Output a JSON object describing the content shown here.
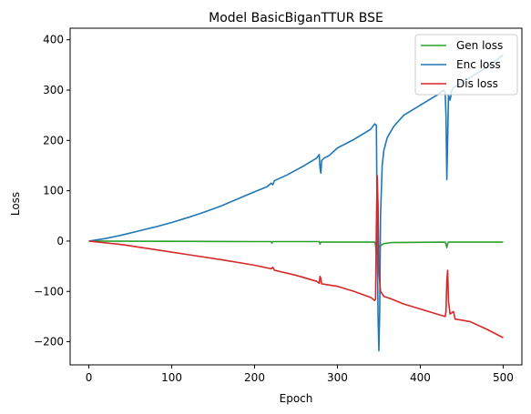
{
  "chart_data": {
    "type": "line",
    "title": "Model BasicBiganTTUR BSE",
    "xlabel": "Epoch",
    "ylabel": "Loss",
    "xlim": [
      -22.6,
      522.6
    ],
    "ylim": [
      -246,
      423
    ],
    "xticks": [
      0,
      100,
      200,
      300,
      400,
      500
    ],
    "yticks": [
      -200,
      -100,
      0,
      100,
      200,
      300,
      400
    ],
    "grid": false,
    "legend_position": "top-right",
    "series": [
      {
        "name": "Gen loss",
        "color": "#2ca02c",
        "points": [
          [
            0,
            0
          ],
          [
            100,
            -0.5
          ],
          [
            200,
            -1
          ],
          [
            220,
            -1
          ],
          [
            221,
            -4
          ],
          [
            222,
            -1
          ],
          [
            278,
            -1
          ],
          [
            279,
            -6
          ],
          [
            280,
            -2
          ],
          [
            345,
            -2
          ],
          [
            346,
            -8
          ],
          [
            347,
            -25
          ],
          [
            348,
            -28
          ],
          [
            349,
            -20
          ],
          [
            350,
            -12
          ],
          [
            353,
            -8
          ],
          [
            356,
            -5
          ],
          [
            365,
            -3
          ],
          [
            430,
            -2
          ],
          [
            431,
            -6
          ],
          [
            432,
            -13
          ],
          [
            433,
            -5
          ],
          [
            434,
            -2
          ],
          [
            500,
            -2
          ]
        ]
      },
      {
        "name": "Enc loss",
        "color": "#1f77b4",
        "points": [
          [
            0,
            0
          ],
          [
            20,
            5
          ],
          [
            40,
            12
          ],
          [
            60,
            20
          ],
          [
            80,
            28
          ],
          [
            100,
            37
          ],
          [
            120,
            47
          ],
          [
            140,
            58
          ],
          [
            160,
            70
          ],
          [
            180,
            84
          ],
          [
            200,
            98
          ],
          [
            215,
            108
          ],
          [
            220,
            115
          ],
          [
            222,
            112
          ],
          [
            224,
            120
          ],
          [
            240,
            132
          ],
          [
            260,
            150
          ],
          [
            275,
            165
          ],
          [
            278,
            172
          ],
          [
            279,
            145
          ],
          [
            280,
            135
          ],
          [
            281,
            160
          ],
          [
            284,
            165
          ],
          [
            290,
            170
          ],
          [
            300,
            185
          ],
          [
            320,
            202
          ],
          [
            340,
            222
          ],
          [
            345,
            233
          ],
          [
            347,
            230
          ],
          [
            348,
            10
          ],
          [
            349,
            -150
          ],
          [
            350,
            -218
          ],
          [
            351,
            -140
          ],
          [
            352,
            50
          ],
          [
            354,
            150
          ],
          [
            356,
            180
          ],
          [
            360,
            205
          ],
          [
            368,
            228
          ],
          [
            380,
            250
          ],
          [
            400,
            270
          ],
          [
            420,
            290
          ],
          [
            428,
            300
          ],
          [
            430,
            295
          ],
          [
            431,
            250
          ],
          [
            432,
            122
          ],
          [
            433,
            200
          ],
          [
            434,
            290
          ],
          [
            436,
            280
          ],
          [
            438,
            300
          ],
          [
            440,
            305
          ],
          [
            460,
            325
          ],
          [
            480,
            345
          ],
          [
            500,
            370
          ]
        ]
      },
      {
        "name": "Dis loss",
        "color": "#d62728",
        "points": [
          [
            0,
            0
          ],
          [
            40,
            -7
          ],
          [
            80,
            -17
          ],
          [
            120,
            -27
          ],
          [
            160,
            -37
          ],
          [
            200,
            -48
          ],
          [
            220,
            -55
          ],
          [
            222,
            -52
          ],
          [
            224,
            -58
          ],
          [
            250,
            -68
          ],
          [
            275,
            -80
          ],
          [
            278,
            -84
          ],
          [
            279,
            -70
          ],
          [
            280,
            -75
          ],
          [
            281,
            -85
          ],
          [
            300,
            -90
          ],
          [
            320,
            -100
          ],
          [
            340,
            -112
          ],
          [
            345,
            -118
          ],
          [
            346,
            -115
          ],
          [
            347,
            30
          ],
          [
            348,
            130
          ],
          [
            349,
            70
          ],
          [
            350,
            -60
          ],
          [
            352,
            -100
          ],
          [
            356,
            -110
          ],
          [
            365,
            -115
          ],
          [
            380,
            -125
          ],
          [
            400,
            -135
          ],
          [
            420,
            -145
          ],
          [
            430,
            -150
          ],
          [
            431,
            -140
          ],
          [
            432,
            -80
          ],
          [
            433,
            -58
          ],
          [
            434,
            -120
          ],
          [
            436,
            -145
          ],
          [
            440,
            -140
          ],
          [
            442,
            -155
          ],
          [
            460,
            -160
          ],
          [
            480,
            -175
          ],
          [
            500,
            -192
          ]
        ]
      }
    ]
  }
}
